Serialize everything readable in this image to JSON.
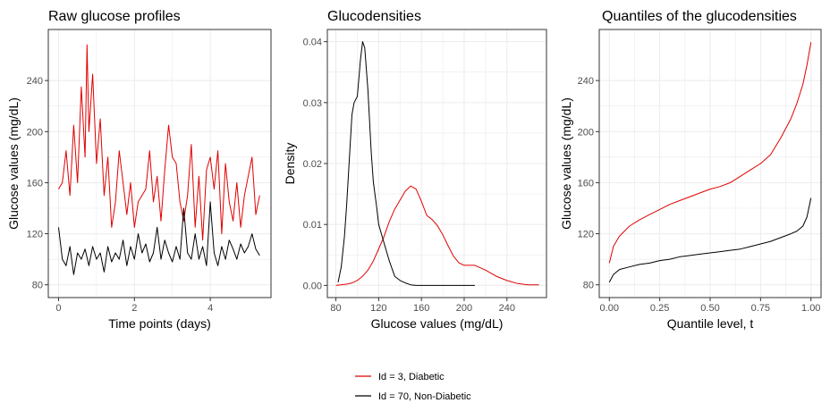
{
  "colors": {
    "diabetic": "#e00000",
    "non_diabetic": "#000000",
    "grid": "#ebebeb",
    "axis_text": "#4d4d4d"
  },
  "legend": [
    {
      "label": "Id = 3, Diabetic",
      "color": "#e00000"
    },
    {
      "label": "Id = 70, Non-Diabetic",
      "color": "#000000"
    }
  ],
  "chart_data": [
    {
      "type": "line",
      "title": "Raw glucose profiles",
      "xlabel": "Time points (days)",
      "ylabel": "Glucose values (mg/dL)",
      "xlim": [
        -0.27,
        5.6
      ],
      "ylim": [
        70,
        280
      ],
      "xticks": [
        0,
        2,
        4
      ],
      "xtick_labels": [
        "0",
        "2",
        "4"
      ],
      "yticks": [
        80,
        120,
        160,
        200,
        240
      ],
      "ytick_labels": [
        "80",
        "120",
        "160",
        "200",
        "240"
      ],
      "series": [
        {
          "name": "Id = 3, Diabetic",
          "color": "#e00000",
          "x": [
            0,
            0.1,
            0.2,
            0.3,
            0.4,
            0.5,
            0.6,
            0.7,
            0.75,
            0.8,
            0.9,
            1.0,
            1.1,
            1.2,
            1.3,
            1.4,
            1.5,
            1.6,
            1.7,
            1.8,
            1.9,
            2.0,
            2.1,
            2.2,
            2.3,
            2.4,
            2.5,
            2.6,
            2.7,
            2.8,
            2.9,
            3.0,
            3.1,
            3.2,
            3.3,
            3.4,
            3.5,
            3.6,
            3.7,
            3.8,
            3.9,
            4.0,
            4.1,
            4.2,
            4.3,
            4.4,
            4.5,
            4.6,
            4.7,
            4.8,
            4.9,
            5.0,
            5.1,
            5.2,
            5.3
          ],
          "y": [
            155,
            160,
            185,
            150,
            205,
            160,
            235,
            180,
            268,
            200,
            245,
            175,
            210,
            150,
            180,
            125,
            145,
            185,
            160,
            135,
            160,
            125,
            145,
            150,
            155,
            185,
            145,
            165,
            130,
            170,
            205,
            180,
            175,
            145,
            130,
            150,
            190,
            125,
            165,
            115,
            170,
            180,
            155,
            185,
            120,
            175,
            145,
            130,
            160,
            125,
            150,
            165,
            180,
            135,
            150
          ]
        },
        {
          "name": "Id = 70, Non-Diabetic",
          "color": "#000000",
          "x": [
            0,
            0.1,
            0.2,
            0.3,
            0.4,
            0.5,
            0.6,
            0.7,
            0.8,
            0.9,
            1.0,
            1.1,
            1.2,
            1.3,
            1.4,
            1.5,
            1.6,
            1.7,
            1.8,
            1.9,
            2.0,
            2.1,
            2.2,
            2.3,
            2.4,
            2.5,
            2.6,
            2.7,
            2.8,
            2.9,
            3.0,
            3.1,
            3.2,
            3.3,
            3.4,
            3.5,
            3.6,
            3.7,
            3.8,
            3.9,
            4.0,
            4.1,
            4.2,
            4.3,
            4.4,
            4.5,
            4.6,
            4.7,
            4.8,
            4.9,
            5.0,
            5.1,
            5.2,
            5.3
          ],
          "y": [
            125,
            100,
            95,
            110,
            88,
            105,
            100,
            108,
            95,
            110,
            100,
            105,
            90,
            110,
            98,
            105,
            100,
            115,
            95,
            110,
            100,
            120,
            105,
            112,
            98,
            105,
            125,
            100,
            115,
            105,
            98,
            110,
            100,
            140,
            105,
            100,
            120,
            100,
            110,
            95,
            145,
            105,
            95,
            110,
            100,
            115,
            108,
            100,
            112,
            105,
            110,
            120,
            108,
            103
          ]
        }
      ]
    },
    {
      "type": "line",
      "title": "Glucodensities",
      "xlabel": "Glucose values (mg/dL)",
      "ylabel": "Density",
      "xlim": [
        72,
        277
      ],
      "ylim": [
        -0.002,
        0.042
      ],
      "xticks": [
        80,
        120,
        160,
        200,
        240
      ],
      "xtick_labels": [
        "80",
        "120",
        "160",
        "200",
        "240"
      ],
      "yticks": [
        0,
        0.01,
        0.02,
        0.03,
        0.04
      ],
      "ytick_labels": [
        "0.00",
        "0.01",
        "0.02",
        "0.03",
        "0.04"
      ],
      "series": [
        {
          "name": "Id = 3, Diabetic",
          "color": "#e00000",
          "x": [
            80,
            90,
            95,
            100,
            105,
            110,
            115,
            120,
            125,
            130,
            135,
            140,
            145,
            150,
            155,
            160,
            165,
            170,
            175,
            180,
            185,
            190,
            195,
            200,
            210,
            220,
            230,
            240,
            250,
            260,
            270
          ],
          "y": [
            0,
            0.0002,
            0.0004,
            0.0008,
            0.0015,
            0.0025,
            0.004,
            0.006,
            0.008,
            0.0105,
            0.0125,
            0.014,
            0.0155,
            0.0163,
            0.0158,
            0.0138,
            0.0115,
            0.0108,
            0.0098,
            0.0083,
            0.0065,
            0.0048,
            0.0037,
            0.0033,
            0.0033,
            0.0025,
            0.0015,
            0.0008,
            0.0003,
            0.0001,
            0.0001
          ]
        },
        {
          "name": "Id = 70, Non-Diabetic",
          "color": "#000000",
          "x": [
            82,
            85,
            88,
            90,
            93,
            95,
            97,
            100,
            103,
            105,
            107,
            110,
            113,
            115,
            118,
            120,
            125,
            130,
            135,
            140,
            145,
            150,
            155,
            160,
            170,
            180,
            190,
            200,
            210
          ],
          "y": [
            0.0005,
            0.003,
            0.008,
            0.013,
            0.022,
            0.028,
            0.03,
            0.031,
            0.037,
            0.04,
            0.039,
            0.032,
            0.022,
            0.017,
            0.013,
            0.01,
            0.007,
            0.004,
            0.0015,
            0.0008,
            0.0004,
            0.0001,
            0,
            0,
            0,
            0,
            0,
            0,
            0
          ]
        }
      ]
    },
    {
      "type": "line",
      "title": "Quantiles of the glucodensities",
      "xlabel": "Quantile level, t",
      "ylabel": "Glucose values (mg/dL)",
      "xlim": [
        -0.05,
        1.05
      ],
      "ylim": [
        70,
        280
      ],
      "xticks": [
        0,
        0.25,
        0.5,
        0.75,
        1
      ],
      "xtick_labels": [
        "0.00",
        "0.25",
        "0.50",
        "0.75",
        "1.00"
      ],
      "yticks": [
        80,
        120,
        160,
        200,
        240
      ],
      "ytick_labels": [
        "80",
        "120",
        "160",
        "200",
        "240"
      ],
      "series": [
        {
          "name": "Id = 3, Diabetic",
          "color": "#e00000",
          "x": [
            0,
            0.02,
            0.05,
            0.1,
            0.15,
            0.2,
            0.25,
            0.3,
            0.35,
            0.4,
            0.45,
            0.5,
            0.55,
            0.6,
            0.65,
            0.7,
            0.75,
            0.8,
            0.85,
            0.9,
            0.93,
            0.96,
            0.98,
            1.0
          ],
          "y": [
            97,
            110,
            118,
            126,
            131,
            135,
            139,
            143,
            146,
            149,
            152,
            155,
            157,
            160,
            165,
            170,
            175,
            182,
            195,
            210,
            222,
            237,
            252,
            270
          ]
        },
        {
          "name": "Id = 70, Non-Diabetic",
          "color": "#000000",
          "x": [
            0,
            0.02,
            0.05,
            0.1,
            0.15,
            0.2,
            0.25,
            0.3,
            0.35,
            0.4,
            0.45,
            0.5,
            0.55,
            0.6,
            0.65,
            0.7,
            0.75,
            0.8,
            0.85,
            0.9,
            0.93,
            0.96,
            0.98,
            1.0
          ],
          "y": [
            82,
            88,
            92,
            94,
            96,
            97,
            99,
            100,
            102,
            103,
            104,
            105,
            106,
            107,
            108,
            110,
            112,
            114,
            117,
            120,
            122,
            126,
            133,
            148
          ]
        }
      ]
    }
  ]
}
